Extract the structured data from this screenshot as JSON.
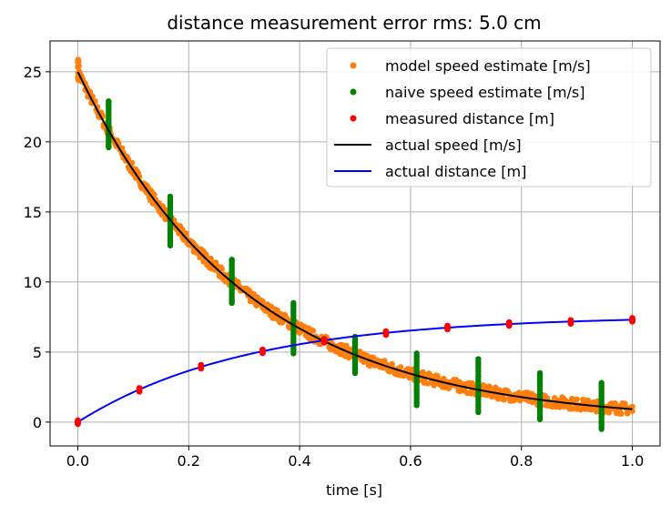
{
  "chart_data": {
    "type": "scatter",
    "title": "distance measurement error rms: 5.0 cm",
    "xlabel": "time [s]",
    "ylabel": "",
    "xlim": [
      -0.05,
      1.05
    ],
    "ylim": [
      -1.7,
      27.2
    ],
    "x_ticks": [
      0.0,
      0.2,
      0.4,
      0.6,
      0.8,
      1.0
    ],
    "x_tick_labels": [
      "0.0",
      "0.2",
      "0.4",
      "0.6",
      "0.8",
      "1.0"
    ],
    "y_ticks": [
      0,
      5,
      10,
      15,
      20,
      25
    ],
    "y_tick_labels": [
      "0",
      "5",
      "10",
      "15",
      "20",
      "25"
    ],
    "grid": true,
    "legend_position": "top-right",
    "series": [
      {
        "name": "model speed estimate [m/s]",
        "kind": "dense-band",
        "color": "#ff7f0e",
        "model": "25*exp(-3.3*t)",
        "band_halfwidth": 0.4,
        "x_range": [
          0.0,
          1.0
        ]
      },
      {
        "name": "naive speed estimate [m/s]",
        "kind": "vertical-clusters",
        "color": "#008000",
        "x": [
          0.0556,
          0.1667,
          0.2778,
          0.3889,
          0.5,
          0.6111,
          0.7222,
          0.8333,
          0.9444
        ],
        "y_min": [
          19.6,
          12.6,
          8.5,
          4.9,
          3.5,
          1.2,
          0.7,
          0.2,
          -0.5
        ],
        "y_max": [
          22.9,
          16.1,
          11.6,
          8.5,
          6.1,
          4.9,
          4.5,
          3.5,
          2.8
        ]
      },
      {
        "name": "measured distance [m]",
        "kind": "points",
        "color": "#ff0000",
        "x": [
          0.0,
          0.1111,
          0.2222,
          0.3333,
          0.4444,
          0.5556,
          0.6667,
          0.7778,
          0.8889,
          1.0
        ],
        "y": [
          0.0,
          2.3,
          3.95,
          5.05,
          5.8,
          6.35,
          6.75,
          7.0,
          7.15,
          7.3
        ]
      },
      {
        "name": "actual speed [m/s]",
        "kind": "line",
        "color": "#000000",
        "model": "25*exp(-3.3*t)"
      },
      {
        "name": "actual distance [m]",
        "kind": "line",
        "color": "#0000ff",
        "model": "7.58*(1-exp(-3.3*t))"
      }
    ]
  }
}
